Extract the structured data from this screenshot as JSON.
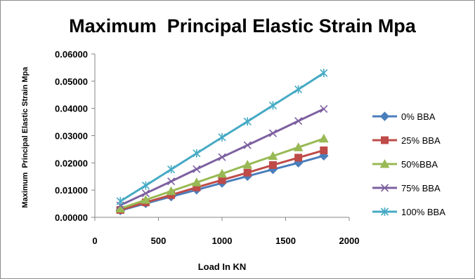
{
  "chart_data": {
    "type": "line",
    "title": "Maximum  Principal Elastic Strain Mpa",
    "xlabel": "Load In KN",
    "ylabel": "Maximum  Principal Elastic Strain Mpa",
    "xlim": [
      0,
      2000
    ],
    "ylim": [
      0,
      0.06
    ],
    "x_ticks": [
      "0",
      "500",
      "1000",
      "1500",
      "2000"
    ],
    "y_ticks": [
      "0.00000",
      "0.01000",
      "0.02000",
      "0.03000",
      "0.04000",
      "0.05000",
      "0.06000"
    ],
    "grid": false,
    "legend_position": "right",
    "x": [
      200,
      400,
      600,
      800,
      1000,
      1200,
      1400,
      1600,
      1800
    ],
    "series": [
      {
        "name": "0% BBA",
        "color": "#4a7ebb",
        "marker": "diamond",
        "values": [
          0.0025,
          0.0051,
          0.0076,
          0.0101,
          0.0126,
          0.0151,
          0.0176,
          0.02,
          0.0226
        ]
      },
      {
        "name": "25% BBA",
        "color": "#be4b48",
        "marker": "square",
        "values": [
          0.0027,
          0.0055,
          0.0082,
          0.011,
          0.0137,
          0.0164,
          0.0192,
          0.0219,
          0.0246
        ]
      },
      {
        "name": "50%BBA",
        "color": "#98b954",
        "marker": "triangle",
        "values": [
          0.0032,
          0.0064,
          0.0096,
          0.0128,
          0.016,
          0.0193,
          0.0225,
          0.0257,
          0.0289
        ]
      },
      {
        "name": "75% BBA",
        "color": "#7d60a0",
        "marker": "x",
        "values": [
          0.0044,
          0.0088,
          0.0132,
          0.0177,
          0.0221,
          0.0265,
          0.0309,
          0.0354,
          0.0398
        ]
      },
      {
        "name": "100% BBA",
        "color": "#46aac5",
        "marker": "star",
        "values": [
          0.0059,
          0.0117,
          0.0176,
          0.0235,
          0.0294,
          0.0352,
          0.0411,
          0.047,
          0.053
        ]
      }
    ]
  }
}
